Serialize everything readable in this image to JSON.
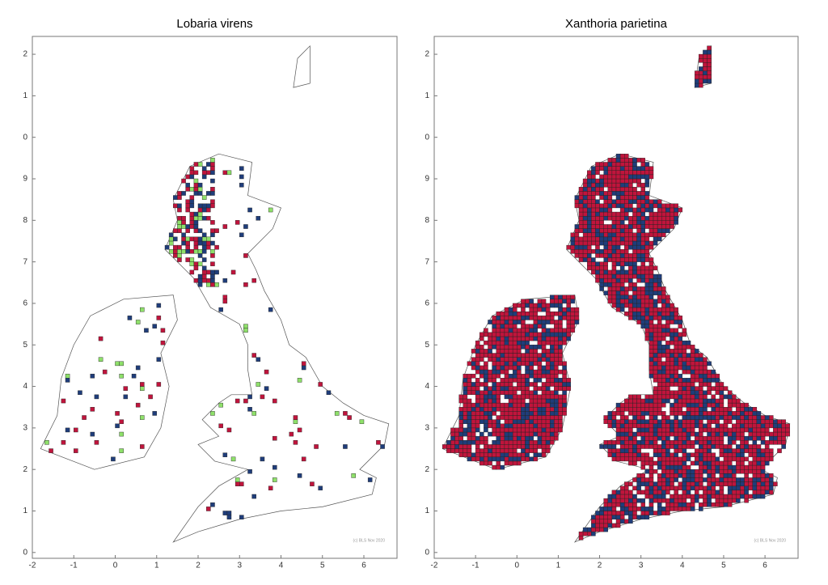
{
  "maps": [
    {
      "title": "Lobaria virens",
      "note": "(c) BLS Nov 2020"
    },
    {
      "title": "Xanthoria parietina",
      "note": "(c) BLS Nov 2020"
    }
  ],
  "axes": {
    "xlim": [
      -2.0,
      6.8
    ],
    "ylim": [
      -0.14,
      12.43
    ],
    "xticks": [
      -2,
      -1,
      0,
      1,
      2,
      3,
      4,
      5,
      6
    ],
    "yticks": [
      0,
      1,
      2,
      3,
      4,
      5,
      6,
      7,
      8,
      9,
      {
        "value": 10,
        "label": "0"
      },
      {
        "value": 11,
        "label": "1"
      },
      {
        "value": 12,
        "label": "2"
      }
    ]
  }
}
